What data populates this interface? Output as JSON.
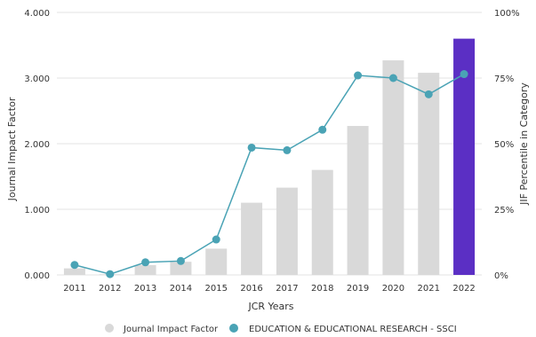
{
  "chart_data": {
    "type": "bar",
    "xlabel": "JCR Years",
    "ylabel": "Journal Impact Factor",
    "y2label": "JIF Percentile in Category",
    "categories": [
      "2011",
      "2012",
      "2013",
      "2014",
      "2015",
      "2016",
      "2017",
      "2018",
      "2019",
      "2020",
      "2021",
      "2022"
    ],
    "ylim": [
      0,
      4
    ],
    "y_ticks": [
      "0.000",
      "1.000",
      "2.000",
      "3.000",
      "4.000"
    ],
    "y2lim": [
      0,
      100
    ],
    "y2_ticks": [
      "0%",
      "25%",
      "50%",
      "75%",
      "100%"
    ],
    "grid": true,
    "legend_position": "bottom",
    "series": [
      {
        "name": "Journal Impact Factor",
        "type": "bar",
        "axis": "left",
        "color": "#d9d9d9",
        "highlight_color": "#5b2fc4",
        "highlight_category": "2022",
        "values": [
          0.1,
          0.01,
          0.15,
          0.2,
          0.4,
          1.1,
          1.33,
          1.6,
          2.27,
          3.27,
          3.08,
          3.6
        ]
      },
      {
        "name": "EDUCATION & EDUCATIONAL RESEARCH - SSCI",
        "type": "line",
        "axis": "right",
        "color": "#4aa3b5",
        "values": [
          3.8,
          0.3,
          4.8,
          5.3,
          13.5,
          48.5,
          47.5,
          55.3,
          76.0,
          75.0,
          68.8,
          76.5
        ]
      }
    ]
  }
}
